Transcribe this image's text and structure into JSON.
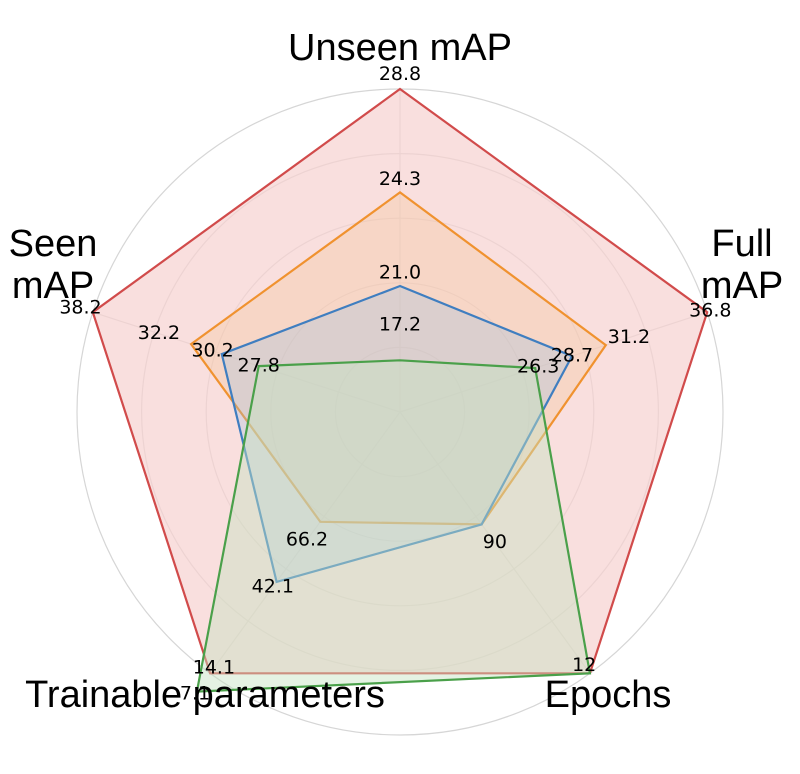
{
  "chart_data": {
    "type": "radar",
    "title": "",
    "grid": true,
    "axes": [
      {
        "name": "unseen-map",
        "label_lines": [
          "Unseen mAP"
        ]
      },
      {
        "name": "full-map",
        "label_lines": [
          "Full",
          "mAP"
        ]
      },
      {
        "name": "epochs",
        "label_lines": [
          "Epochs"
        ]
      },
      {
        "name": "trainable-parameters",
        "label_lines": [
          "Trainable parameters"
        ]
      },
      {
        "name": "seen-map",
        "label_lines": [
          "Seen",
          "mAP"
        ]
      }
    ],
    "tick_values": {
      "unseen-map": [
        "28.8",
        "24.3",
        "21.0",
        "17.2"
      ],
      "full-map": [
        "36.8",
        "31.2",
        "28.7",
        "26.3"
      ],
      "epochs": [
        "90",
        "12"
      ],
      "trainable-parameters": [
        "66.2",
        "42.1",
        "14.1",
        "7.1"
      ],
      "seen-map": [
        "38.2",
        "32.2",
        "30.2",
        "27.8"
      ]
    },
    "series": [
      {
        "key": "red",
        "color": "#d14b4b",
        "fill": "#f7d2d0",
        "fill_opacity": 0.7,
        "values": [
          28.8,
          36.8,
          12,
          14.1,
          38.2
        ],
        "radii": [
          1.0,
          1.0,
          1.0,
          1.0,
          1.0
        ]
      },
      {
        "key": "orange",
        "color": "#f0922f",
        "fill": "#f3c79a",
        "fill_opacity": 0.35,
        "values": [
          24.3,
          31.2,
          90,
          66.2,
          32.2
        ],
        "radii": [
          0.68,
          0.67,
          0.43,
          0.42,
          0.68
        ]
      },
      {
        "key": "blue",
        "color": "#3f7ec0",
        "fill": "#9dbfe0",
        "fill_opacity": 0.3,
        "values": [
          21.0,
          28.7,
          90,
          42.1,
          30.2
        ],
        "radii": [
          0.39,
          0.56,
          0.43,
          0.65,
          0.58
        ]
      },
      {
        "key": "green",
        "color": "#4aa04a",
        "fill": "#c6e2c2",
        "fill_opacity": 0.45,
        "values": [
          17.2,
          26.3,
          12,
          7.1,
          27.8
        ],
        "radii": [
          0.16,
          0.44,
          1.0,
          1.07,
          0.46
        ]
      }
    ],
    "value_label_radii": {
      "unseen-map": [
        1.045,
        0.72,
        0.43,
        0.27
      ],
      "full-map": [
        1.01,
        0.745,
        0.56,
        0.45
      ],
      "epochs": [
        0.5,
        0.97
      ],
      "trainable-parameters": [
        0.49,
        0.67,
        0.98,
        1.08
      ],
      "seen-map": [
        1.04,
        0.785,
        0.61,
        0.46
      ]
    }
  }
}
